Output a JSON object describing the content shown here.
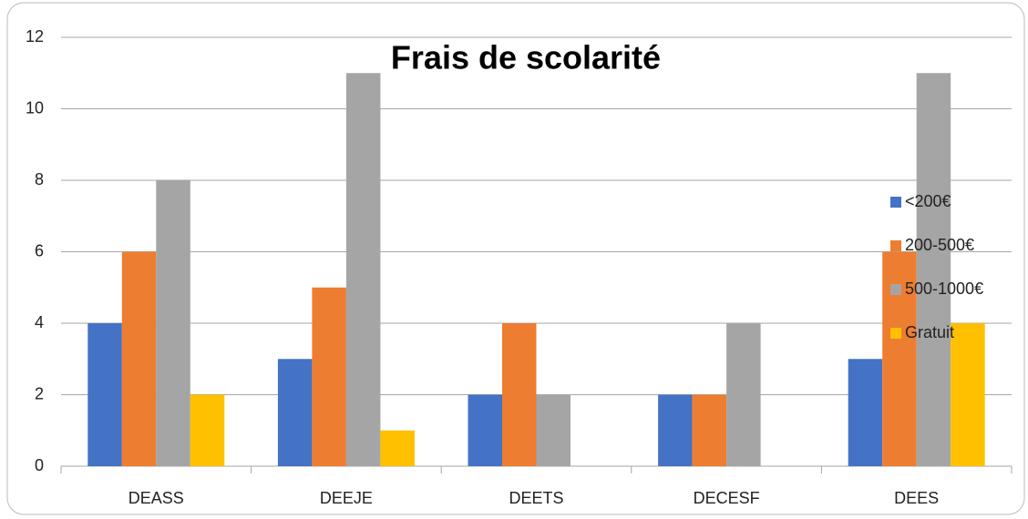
{
  "chart_data": {
    "type": "bar",
    "title": "Frais de scolarité",
    "categories": [
      "DEASS",
      "DEEJE",
      "DEETS",
      "DECESF",
      "DEES"
    ],
    "series": [
      {
        "name": "<200€",
        "color": "#4472c4",
        "values": [
          4,
          3,
          2,
          2,
          3
        ]
      },
      {
        "name": "200-500€",
        "color": "#ed7d31",
        "values": [
          6,
          5,
          4,
          2,
          6
        ]
      },
      {
        "name": "500-1000€",
        "color": "#a5a5a5",
        "values": [
          8,
          11,
          2,
          4,
          11
        ]
      },
      {
        "name": "Gratuit",
        "color": "#ffc000",
        "values": [
          2,
          1,
          0,
          0,
          4
        ]
      }
    ],
    "ylim": [
      0,
      12
    ],
    "yticks": [
      0,
      2,
      4,
      6,
      8,
      10,
      12
    ],
    "grid": true,
    "legend": "right"
  }
}
